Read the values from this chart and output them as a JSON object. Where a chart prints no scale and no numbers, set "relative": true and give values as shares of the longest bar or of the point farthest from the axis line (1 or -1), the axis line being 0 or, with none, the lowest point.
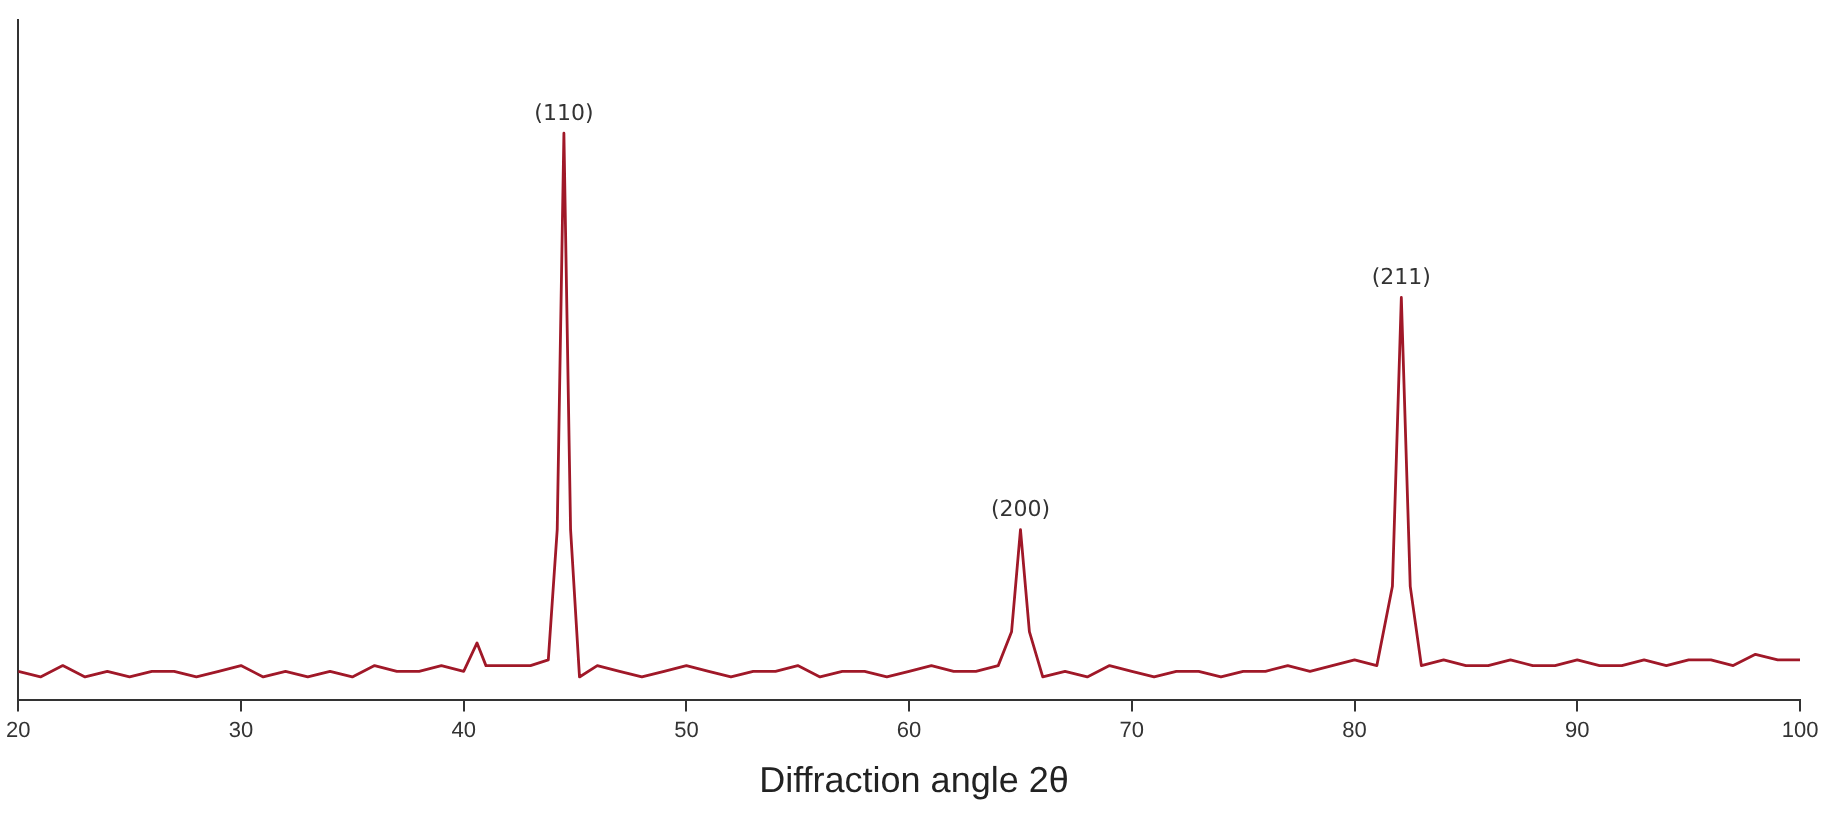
{
  "chart_data": {
    "type": "line",
    "xlabel": "Diffraction angle 2θ",
    "relative": true,
    "xlim": [
      20,
      100
    ],
    "xticks": [
      20,
      30,
      40,
      50,
      60,
      70,
      80,
      90,
      100
    ],
    "grid": false,
    "legend": false,
    "marker": "none",
    "line_style": "solid",
    "annotations": [
      {
        "text": "(110)",
        "x": 44.5,
        "y": 1
      },
      {
        "text": "(200)",
        "x": 65,
        "y": 0.3
      },
      {
        "text": "(211)",
        "x": 82.1,
        "y": 0.71
      }
    ],
    "series": [
      {
        "color": "#a01828",
        "x": [
          20,
          21,
          22,
          23,
          24,
          25,
          26,
          27,
          28,
          29,
          30,
          31,
          32,
          33,
          34,
          35,
          36,
          37,
          38,
          39,
          40,
          40.6,
          41,
          42,
          43,
          43.8,
          44.2,
          44.5,
          44.8,
          45.2,
          46,
          47,
          48,
          49,
          50,
          51,
          52,
          53,
          54,
          55,
          56,
          57,
          58,
          59,
          60,
          61,
          62,
          63,
          64,
          64.6,
          65,
          65.4,
          66,
          67,
          68,
          69,
          70,
          71,
          72,
          73,
          74,
          75,
          76,
          77,
          78,
          79,
          80,
          81,
          81.7,
          82.1,
          82.5,
          83,
          84,
          85,
          86,
          87,
          88,
          89,
          90,
          91,
          92,
          93,
          94,
          95,
          96,
          97,
          98,
          99,
          100
        ],
        "values": [
          0.05,
          0.04,
          0.06,
          0.04,
          0.05,
          0.04,
          0.05,
          0.05,
          0.04,
          0.05,
          0.06,
          0.04,
          0.05,
          0.04,
          0.05,
          0.04,
          0.06,
          0.05,
          0.05,
          0.06,
          0.05,
          0.1,
          0.06,
          0.06,
          0.06,
          0.07,
          0.3,
          1,
          0.3,
          0.04,
          0.06,
          0.05,
          0.04,
          0.05,
          0.06,
          0.05,
          0.04,
          0.05,
          0.05,
          0.06,
          0.04,
          0.05,
          0.05,
          0.04,
          0.05,
          0.06,
          0.05,
          0.05,
          0.06,
          0.12,
          0.3,
          0.12,
          0.04,
          0.05,
          0.04,
          0.06,
          0.05,
          0.04,
          0.05,
          0.05,
          0.04,
          0.05,
          0.05,
          0.06,
          0.05,
          0.06,
          0.07,
          0.06,
          0.2,
          0.71,
          0.2,
          0.06,
          0.07,
          0.06,
          0.06,
          0.07,
          0.06,
          0.06,
          0.07,
          0.06,
          0.06,
          0.07,
          0.06,
          0.07,
          0.07,
          0.06,
          0.08,
          0.07,
          0.07
        ]
      }
    ]
  }
}
